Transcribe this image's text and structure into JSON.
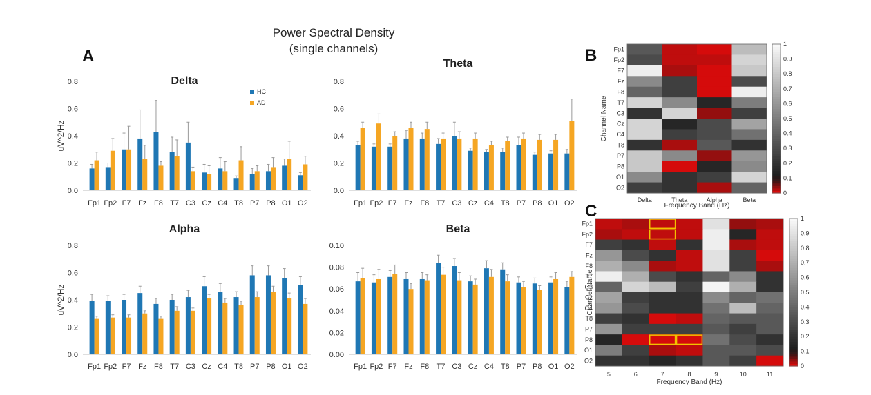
{
  "figure": {
    "title_line1": "Power Spectral Density",
    "title_line2": "(single channels)",
    "panel_a_label": "A",
    "panel_b_label": "B",
    "panel_c_label": "C"
  },
  "colors": {
    "hc": "#1f77b4",
    "ad": "#f5a623",
    "error_bar": "#9a9a9a",
    "axis": "#bdbdbd",
    "highlight": "#f2c200"
  },
  "chart_data": [
    {
      "id": "delta",
      "type": "bar",
      "title": "Delta",
      "xlabel": "",
      "ylabel": "uV^2/Hz",
      "ylim": [
        0,
        0.8
      ],
      "yticks": [
        "0.0",
        "0.2",
        "0.4",
        "0.6",
        "0.8"
      ],
      "ytick_values": [
        0,
        0.2,
        0.4,
        0.6,
        0.8
      ],
      "legend": {
        "position": "top-right",
        "entries": [
          "HC",
          "AD"
        ]
      },
      "categories": [
        "Fp1",
        "Fp2",
        "F7",
        "Fz",
        "F8",
        "T7",
        "C3",
        "Cz",
        "C4",
        "T8",
        "P7",
        "P8",
        "O1",
        "O2"
      ],
      "series": [
        {
          "name": "HC",
          "values": [
            0.16,
            0.17,
            0.3,
            0.38,
            0.43,
            0.28,
            0.35,
            0.13,
            0.16,
            0.09,
            0.12,
            0.14,
            0.18,
            0.11
          ],
          "errors": [
            0.03,
            0.03,
            0.12,
            0.21,
            0.23,
            0.11,
            0.15,
            0.06,
            0.08,
            0.015,
            0.04,
            0.05,
            0.05,
            0.02
          ]
        },
        {
          "name": "AD",
          "values": [
            0.22,
            0.29,
            0.3,
            0.23,
            0.18,
            0.25,
            0.14,
            0.12,
            0.14,
            0.22,
            0.14,
            0.17,
            0.23,
            0.19
          ],
          "errors": [
            0.06,
            0.09,
            0.17,
            0.1,
            0.03,
            0.12,
            0.03,
            0.06,
            0.07,
            0.1,
            0.04,
            0.07,
            0.13,
            0.06
          ]
        }
      ]
    },
    {
      "id": "theta",
      "type": "bar",
      "title": "Theta",
      "xlabel": "",
      "ylabel": "",
      "ylim": [
        0,
        0.8
      ],
      "yticks": [
        "0.0",
        "0.2",
        "0.4",
        "0.6",
        "0.8"
      ],
      "ytick_values": [
        0,
        0.2,
        0.4,
        0.6,
        0.8
      ],
      "categories": [
        "Fp1",
        "Fp2",
        "F7",
        "Fz",
        "F8",
        "T7",
        "C3",
        "Cz",
        "C4",
        "T8",
        "P7",
        "P8",
        "O1",
        "O2"
      ],
      "series": [
        {
          "name": "HC",
          "values": [
            0.33,
            0.32,
            0.32,
            0.38,
            0.38,
            0.34,
            0.4,
            0.29,
            0.28,
            0.28,
            0.33,
            0.26,
            0.27,
            0.27
          ],
          "errors": [
            0.03,
            0.02,
            0.02,
            0.06,
            0.04,
            0.04,
            0.1,
            0.02,
            0.02,
            0.03,
            0.06,
            0.02,
            0.02,
            0.03
          ]
        },
        {
          "name": "AD",
          "values": [
            0.46,
            0.49,
            0.4,
            0.46,
            0.45,
            0.38,
            0.38,
            0.38,
            0.33,
            0.36,
            0.38,
            0.37,
            0.37,
            0.51
          ],
          "errors": [
            0.04,
            0.07,
            0.03,
            0.04,
            0.05,
            0.04,
            0.05,
            0.04,
            0.03,
            0.03,
            0.04,
            0.04,
            0.04,
            0.16
          ]
        }
      ]
    },
    {
      "id": "alpha",
      "type": "bar",
      "title": "Alpha",
      "xlabel": "",
      "ylabel": "uV^2/Hz",
      "ylim": [
        0,
        0.8
      ],
      "yticks": [
        "0.0",
        "0.2",
        "0.4",
        "0.6",
        "0.8"
      ],
      "ytick_values": [
        0,
        0.2,
        0.4,
        0.6,
        0.8
      ],
      "categories": [
        "Fp1",
        "Fp2",
        "F7",
        "Fz",
        "F8",
        "T7",
        "C3",
        "Cz",
        "C4",
        "T8",
        "P7",
        "P8",
        "O1",
        "O2"
      ],
      "series": [
        {
          "name": "HC",
          "values": [
            0.39,
            0.39,
            0.4,
            0.45,
            0.37,
            0.4,
            0.42,
            0.5,
            0.46,
            0.42,
            0.58,
            0.58,
            0.56,
            0.51
          ],
          "errors": [
            0.05,
            0.04,
            0.04,
            0.05,
            0.04,
            0.04,
            0.05,
            0.07,
            0.06,
            0.04,
            0.07,
            0.07,
            0.07,
            0.06
          ]
        },
        {
          "name": "AD",
          "values": [
            0.26,
            0.27,
            0.27,
            0.3,
            0.26,
            0.32,
            0.32,
            0.41,
            0.38,
            0.36,
            0.42,
            0.46,
            0.41,
            0.37
          ],
          "errors": [
            0.02,
            0.02,
            0.02,
            0.02,
            0.02,
            0.03,
            0.02,
            0.03,
            0.03,
            0.03,
            0.04,
            0.04,
            0.04,
            0.04
          ]
        }
      ]
    },
    {
      "id": "beta",
      "type": "bar",
      "title": "Beta",
      "xlabel": "",
      "ylabel": "",
      "ylim": [
        0,
        0.1
      ],
      "yticks": [
        "0.00",
        "0.02",
        "0.04",
        "0.06",
        "0.08",
        "0.10"
      ],
      "ytick_values": [
        0,
        0.02,
        0.04,
        0.06,
        0.08,
        0.1
      ],
      "categories": [
        "Fp1",
        "Fp2",
        "F7",
        "Fz",
        "F8",
        "T7",
        "C3",
        "Cz",
        "C4",
        "T8",
        "P7",
        "P8",
        "O1",
        "O2"
      ],
      "series": [
        {
          "name": "HC",
          "values": [
            0.067,
            0.066,
            0.071,
            0.069,
            0.069,
            0.084,
            0.081,
            0.067,
            0.079,
            0.078,
            0.066,
            0.065,
            0.066,
            0.062
          ],
          "errors": [
            0.008,
            0.007,
            0.006,
            0.006,
            0.006,
            0.007,
            0.007,
            0.005,
            0.007,
            0.006,
            0.005,
            0.005,
            0.005,
            0.005
          ]
        },
        {
          "name": "AD",
          "values": [
            0.07,
            0.069,
            0.074,
            0.06,
            0.068,
            0.073,
            0.068,
            0.064,
            0.071,
            0.067,
            0.062,
            0.059,
            0.069,
            0.071
          ],
          "errors": [
            0.009,
            0.009,
            0.008,
            0.005,
            0.005,
            0.007,
            0.007,
            0.005,
            0.007,
            0.006,
            0.005,
            0.004,
            0.006,
            0.005
          ]
        }
      ]
    },
    {
      "id": "heatmap_b",
      "type": "heatmap",
      "xlabel": "Frequency Band (Hz)",
      "ylabel": "Channel Name",
      "x": [
        "Delta",
        "Theta",
        "Alpha",
        "Beta"
      ],
      "y": [
        "Fp1",
        "Fp2",
        "F7",
        "Fz",
        "F8",
        "T7",
        "C3",
        "Cz",
        "C4",
        "T8",
        "P7",
        "P8",
        "O1",
        "O2"
      ],
      "colorbar_ticks": [
        "0",
        "0.1",
        "0.2",
        "0.3",
        "0.4",
        "0.5",
        "0.6",
        "0.7",
        "0.8",
        "0.9",
        "1"
      ],
      "colorbar_tick_values": [
        0,
        0.1,
        0.2,
        0.3,
        0.4,
        0.5,
        0.6,
        0.7,
        0.8,
        0.9,
        1
      ],
      "values": [
        [
          0.35,
          0.02,
          0.01,
          0.75
        ],
        [
          0.3,
          0.02,
          0.02,
          0.85
        ],
        [
          0.95,
          0.03,
          0.01,
          0.8
        ],
        [
          0.55,
          0.25,
          0.01,
          0.3
        ],
        [
          0.4,
          0.25,
          0.01,
          0.95
        ],
        [
          0.85,
          0.55,
          0.15,
          0.5
        ],
        [
          0.2,
          0.85,
          0.04,
          0.25
        ],
        [
          0.85,
          0.15,
          0.3,
          0.65
        ],
        [
          0.85,
          0.25,
          0.3,
          0.45
        ],
        [
          0.2,
          0.03,
          0.35,
          0.2
        ],
        [
          0.8,
          0.55,
          0.04,
          0.6
        ],
        [
          0.8,
          0.01,
          0.15,
          0.55
        ],
        [
          0.55,
          0.2,
          0.25,
          0.85
        ],
        [
          0.25,
          0.2,
          0.03,
          0.4
        ]
      ]
    },
    {
      "id": "heatmap_c",
      "type": "heatmap",
      "xlabel": "Frequency Band (Hz)",
      "ylabel": "Channel Name",
      "x": [
        "5",
        "6",
        "7",
        "8",
        "9",
        "10",
        "11"
      ],
      "y": [
        "Fp1",
        "Fp2",
        "F7",
        "Fz",
        "F8",
        "T7",
        "C3",
        "Cz",
        "C4",
        "T8",
        "P7",
        "P8",
        "O1",
        "O2"
      ],
      "colorbar_ticks": [
        "0",
        "0.1",
        "0.2",
        "0.3",
        "0.4",
        "0.5",
        "0.6",
        "0.7",
        "0.8",
        "0.9",
        "1"
      ],
      "colorbar_tick_values": [
        0,
        0.1,
        0.2,
        0.3,
        0.4,
        0.5,
        0.6,
        0.7,
        0.8,
        0.9,
        1
      ],
      "highlights": [
        {
          "rows": [
            "Fp1",
            "Fp2"
          ],
          "cols": [
            "7"
          ]
        },
        {
          "rows": [
            "P8"
          ],
          "cols": [
            "7",
            "8"
          ]
        }
      ],
      "values": [
        [
          0.02,
          0.03,
          0.02,
          0.02,
          0.9,
          0.04,
          0.03
        ],
        [
          0.03,
          0.02,
          0.02,
          0.02,
          0.95,
          0.15,
          0.02
        ],
        [
          0.25,
          0.2,
          0.02,
          0.2,
          0.95,
          0.03,
          0.02
        ],
        [
          0.6,
          0.3,
          0.2,
          0.02,
          0.9,
          0.25,
          0.01
        ],
        [
          0.7,
          0.55,
          0.03,
          0.02,
          0.9,
          0.25,
          0.03
        ],
        [
          0.95,
          0.7,
          0.3,
          0.2,
          0.4,
          0.55,
          0.2
        ],
        [
          0.4,
          0.85,
          0.75,
          0.25,
          0.98,
          0.7,
          0.2
        ],
        [
          0.65,
          0.25,
          0.2,
          0.2,
          0.55,
          0.4,
          0.45
        ],
        [
          0.6,
          0.3,
          0.2,
          0.2,
          0.45,
          0.75,
          0.4
        ],
        [
          0.25,
          0.2,
          0.01,
          0.02,
          0.4,
          0.35,
          0.35
        ],
        [
          0.6,
          0.25,
          0.25,
          0.25,
          0.35,
          0.25,
          0.35
        ],
        [
          0.15,
          0.01,
          0.01,
          0.01,
          0.45,
          0.3,
          0.2
        ],
        [
          0.5,
          0.25,
          0.03,
          0.02,
          0.35,
          0.35,
          0.3
        ],
        [
          0.2,
          0.2,
          0.15,
          0.2,
          0.35,
          0.25,
          0.01
        ]
      ]
    }
  ]
}
